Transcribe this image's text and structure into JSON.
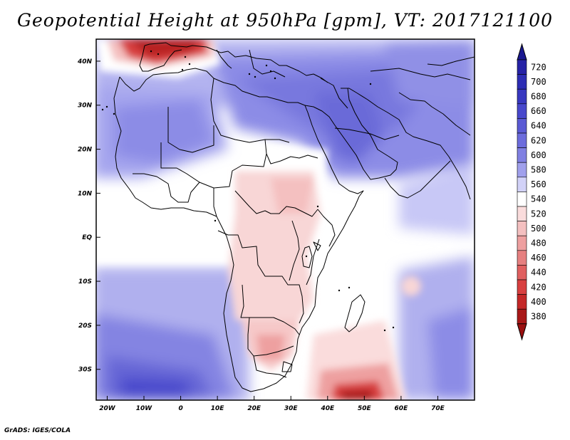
{
  "title": "Geopotential Height at 950hPa [gpm], VT: 2017121100",
  "credit": "GrADS: IGES/COLA",
  "map": {
    "lon_range": [
      -23,
      80
    ],
    "lat_range": [
      -37,
      45
    ],
    "lon_ticks": [
      {
        "value": -20,
        "label": "20W"
      },
      {
        "value": -10,
        "label": "10W"
      },
      {
        "value": 0,
        "label": "0"
      },
      {
        "value": 10,
        "label": "10E"
      },
      {
        "value": 20,
        "label": "20E"
      },
      {
        "value": 30,
        "label": "30E"
      },
      {
        "value": 40,
        "label": "40E"
      },
      {
        "value": 50,
        "label": "50E"
      },
      {
        "value": 60,
        "label": "60E"
      },
      {
        "value": 70,
        "label": "70E"
      }
    ],
    "lat_ticks": [
      {
        "value": 40,
        "label": "40N"
      },
      {
        "value": 30,
        "label": "30N"
      },
      {
        "value": 20,
        "label": "20N"
      },
      {
        "value": 10,
        "label": "10N"
      },
      {
        "value": 0,
        "label": "EQ"
      },
      {
        "value": -10,
        "label": "10S"
      },
      {
        "value": -20,
        "label": "20S"
      },
      {
        "value": -30,
        "label": "30S"
      }
    ]
  },
  "colorbar": {
    "levels": [
      {
        "label": "720",
        "color": "#2622a6"
      },
      {
        "label": "700",
        "color": "#2d2db4"
      },
      {
        "label": "680",
        "color": "#3838c0"
      },
      {
        "label": "660",
        "color": "#4848cc"
      },
      {
        "label": "640",
        "color": "#5a5ad4"
      },
      {
        "label": "620",
        "color": "#6c6cdc"
      },
      {
        "label": "600",
        "color": "#8080e2"
      },
      {
        "label": "580",
        "color": "#a0a0ec"
      },
      {
        "label": "560",
        "color": "#d2d2f8"
      },
      {
        "label": "540",
        "color": "#ffffff"
      },
      {
        "label": "520",
        "color": "#fadcdc"
      },
      {
        "label": "500",
        "color": "#f4c0c0"
      },
      {
        "label": "480",
        "color": "#eea0a0"
      },
      {
        "label": "460",
        "color": "#e68080"
      },
      {
        "label": "440",
        "color": "#e06060"
      },
      {
        "label": "420",
        "color": "#d84040"
      },
      {
        "label": "400",
        "color": "#c42828"
      },
      {
        "label": "380",
        "color": "#a81818"
      }
    ],
    "top_color": "#1a1890",
    "bottom_color": "#9a1010"
  }
}
